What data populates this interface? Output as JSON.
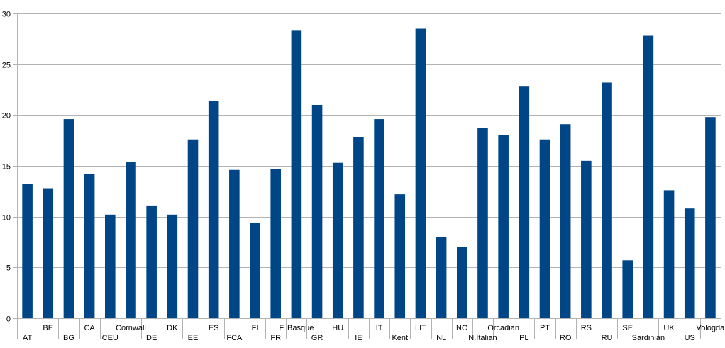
{
  "chart_data": {
    "type": "bar",
    "title": "",
    "xlabel": "",
    "ylabel": "",
    "ylim": [
      0,
      30
    ],
    "yticks": [
      0,
      5,
      10,
      15,
      20,
      25,
      30
    ],
    "grid": true,
    "legend": "none",
    "bar_color": "#004586",
    "grid_color": "#b3b3b3",
    "categories": [
      "AT",
      "BE",
      "BG",
      "CA",
      "CEU",
      "Cornwall",
      "DE",
      "DK",
      "EE",
      "ES",
      "FCA",
      "FI",
      "FR",
      "F. Basque",
      "GR",
      "HU",
      "IE",
      "IT",
      "Kent",
      "LIT",
      "NL",
      "NO",
      "N.Italian",
      "Orcadian",
      "PL",
      "PT",
      "RO",
      "RS",
      "RU",
      "SE",
      "Sardinian",
      "UK",
      "US",
      "Vologda"
    ],
    "values": [
      13.2,
      12.8,
      19.6,
      14.2,
      10.2,
      15.4,
      11.1,
      10.2,
      17.6,
      21.4,
      14.6,
      9.4,
      14.7,
      28.3,
      21.0,
      15.3,
      17.8,
      19.6,
      12.2,
      28.5,
      8.0,
      7.0,
      18.7,
      18.0,
      22.8,
      17.6,
      19.1,
      15.5,
      23.2,
      5.7,
      27.8,
      12.6,
      10.8,
      19.8
    ]
  }
}
